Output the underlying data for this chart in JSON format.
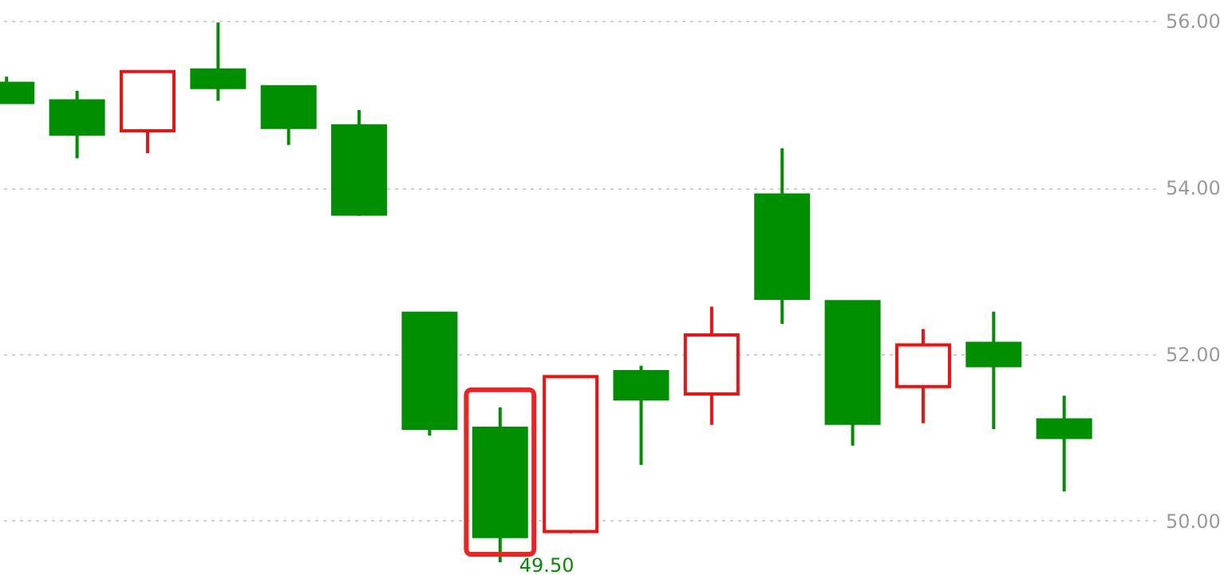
{
  "chart_data": {
    "type": "candlestick",
    "categories": [
      null,
      null,
      null,
      null,
      null,
      null,
      null,
      null,
      null,
      null,
      null,
      null,
      null,
      null,
      null,
      null
    ],
    "ohlc": [
      [
        55.25,
        55.33,
        55.02,
        55.02
      ],
      [
        55.04,
        55.16,
        54.35,
        54.64
      ],
      [
        54.68,
        55.39,
        54.41,
        55.39
      ],
      [
        55.41,
        55.98,
        55.04,
        55.2
      ],
      [
        55.21,
        55.21,
        54.51,
        54.72
      ],
      [
        54.74,
        54.93,
        53.66,
        53.68
      ],
      [
        52.49,
        52.49,
        51.02,
        51.11
      ],
      [
        51.11,
        51.36,
        49.5,
        49.81
      ],
      [
        49.87,
        51.73,
        49.85,
        51.73
      ],
      [
        51.79,
        51.86,
        50.67,
        51.46
      ],
      [
        51.52,
        52.57,
        51.15,
        52.23
      ],
      [
        53.91,
        54.47,
        52.36,
        52.67
      ],
      [
        52.63,
        52.63,
        50.9,
        51.17
      ],
      [
        51.61,
        52.3,
        51.17,
        52.11
      ],
      [
        52.13,
        52.51,
        51.1,
        51.86
      ],
      [
        51.21,
        51.5,
        50.35,
        51.0
      ]
    ],
    "colors": [
      "#008f00",
      "#008f00",
      "#ee1111",
      "#008f00",
      "#008f00",
      "#008f00",
      "#008f00",
      "#008f00",
      "#ee1111",
      "#008f00",
      "#ee1111",
      "#008f00",
      "#008f00",
      "#ee1111",
      "#008f00",
      "#008f00"
    ],
    "ylim": [
      49.3,
      56.25
    ],
    "yticks": [
      {
        "value": 50,
        "label": "50.00"
      },
      {
        "value": 52,
        "label": "52.00"
      },
      {
        "value": 54,
        "label": "54.00"
      },
      {
        "value": 56,
        "label": "56.00"
      }
    ],
    "grid": "y",
    "tick_labels": "y",
    "annotations": [
      "49.50"
    ]
  }
}
